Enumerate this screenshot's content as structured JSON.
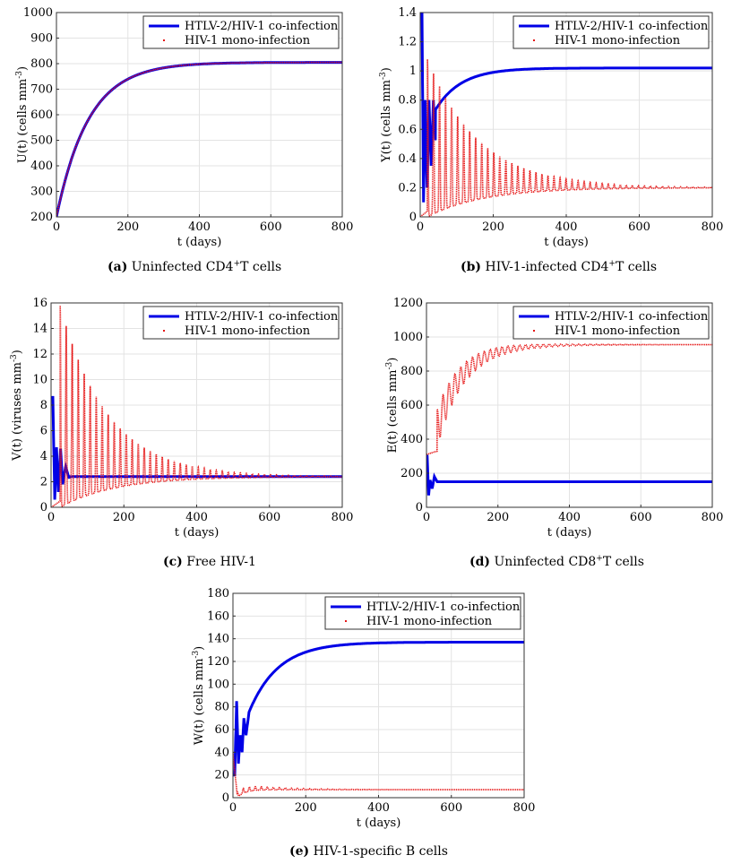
{
  "legend": {
    "coinfection": "HTLV-2/HIV-1 co-infection",
    "mono": "HIV-1 mono-infection"
  },
  "colors": {
    "coinfection": "#0000e6",
    "mono": "#e61717",
    "grid": "#e3e3e3",
    "axis": "#333333"
  },
  "chart_data": [
    {
      "id": "a",
      "type": "line",
      "caption_letter": "(a)",
      "caption_text": "Uninfected CD4",
      "caption_sup": "+",
      "caption_tail": "T cells",
      "ylabel": "U(t) (cells mm",
      "ylabel_sup": "-3",
      "ylabel_tail": ")",
      "xlabel": "t (days)",
      "xlim": [
        0,
        800
      ],
      "ylim": [
        200,
        1000
      ],
      "xticks": [
        0,
        200,
        400,
        600,
        800
      ],
      "yticks": [
        200,
        300,
        400,
        500,
        600,
        700,
        800,
        900,
        1000
      ],
      "legend_position": "top-right",
      "series": [
        {
          "name": "HTLV-2/HIV-1 co-infection",
          "model": "exp",
          "y0": 200,
          "y1": 805,
          "tau": 90
        },
        {
          "name": "HIV-1 mono-infection",
          "model": "exp",
          "y0": 200,
          "y1": 805,
          "tau": 90,
          "dotted": true
        }
      ]
    },
    {
      "id": "b",
      "type": "line",
      "caption_letter": "(b)",
      "caption_text": "HIV-1-infected CD4",
      "caption_sup": "+",
      "caption_tail": "T cells",
      "ylabel": "Y(t) (cells mm",
      "ylabel_sup": "-3",
      "ylabel_tail": ")",
      "xlabel": "t (days)",
      "xlim": [
        0,
        800
      ],
      "ylim": [
        0,
        1.4
      ],
      "xticks": [
        0,
        200,
        400,
        600,
        800
      ],
      "yticks": [
        0,
        0.2,
        0.4,
        0.6,
        0.8,
        1,
        1.2,
        1.4
      ],
      "legend_position": "top-right",
      "series": [
        {
          "name": "HTLV-2/HIV-1 co-infection",
          "model": "rise_osc",
          "y0": 0.5,
          "y1": 1.02,
          "tau": 70,
          "spikes": [
            [
              5,
              1.4
            ],
            [
              9,
              0.1
            ],
            [
              14,
              0.8
            ],
            [
              19,
              0.2
            ],
            [
              24,
              0.8
            ],
            [
              30,
              0.35
            ],
            [
              36,
              0.8
            ],
            [
              42,
              0.5
            ]
          ]
        },
        {
          "name": "HIV-1 mono-infection",
          "model": "decay_osc",
          "baseline": 0.2,
          "period": 16.5,
          "amp0": 1.08,
          "tau": 140,
          "start": 20,
          "dotted": true
        }
      ]
    },
    {
      "id": "c",
      "type": "line",
      "caption_letter": "(c)",
      "caption_text": "Free HIV-1",
      "caption_sup": "",
      "caption_tail": "",
      "ylabel": "V(t) (viruses mm",
      "ylabel_sup": "-3",
      "ylabel_tail": ")",
      "xlabel": "t (days)",
      "xlim": [
        0,
        800
      ],
      "ylim": [
        0,
        16
      ],
      "xticks": [
        0,
        200,
        400,
        600,
        800
      ],
      "yticks": [
        0,
        2,
        4,
        6,
        8,
        10,
        12,
        14,
        16
      ],
      "legend_position": "top-right",
      "series": [
        {
          "name": "HTLV-2/HIV-1 co-infection",
          "model": "flat_osc",
          "y1": 2.4,
          "spikes": [
            [
              5,
              8.6
            ],
            [
              10,
              0.6
            ],
            [
              15,
              4.7
            ],
            [
              20,
              1.2
            ],
            [
              26,
              4.6
            ],
            [
              32,
              1.8
            ],
            [
              40,
              3.2
            ],
            [
              50,
              2.2
            ]
          ]
        },
        {
          "name": "HIV-1 mono-infection",
          "model": "decay_osc",
          "baseline": 2.4,
          "period": 16.5,
          "amp0": 15.8,
          "tau": 130,
          "start": 25,
          "dotted": true
        }
      ]
    },
    {
      "id": "d",
      "type": "line",
      "caption_letter": "(d)",
      "caption_text": "Uninfected CD8",
      "caption_sup": "+",
      "caption_tail": "T cells",
      "ylabel": "E(t) (cells mm",
      "ylabel_sup": "-3",
      "ylabel_tail": ")",
      "xlabel": "t (days)",
      "xlim": [
        0,
        800
      ],
      "ylim": [
        0,
        1200
      ],
      "xticks": [
        0,
        200,
        400,
        600,
        800
      ],
      "yticks": [
        0,
        200,
        400,
        600,
        800,
        1000,
        1200
      ],
      "legend_position": "top-right",
      "series": [
        {
          "name": "HTLV-2/HIV-1 co-infection",
          "model": "flat_osc",
          "y1": 150,
          "spikes": [
            [
              2,
              300
            ],
            [
              6,
              70
            ],
            [
              10,
              160
            ],
            [
              16,
              110
            ],
            [
              22,
              180
            ],
            [
              30,
              150
            ]
          ]
        },
        {
          "name": "HIV-1 mono-infection",
          "model": "rise_decay_osc",
          "y0": 310,
          "y1": 955,
          "tau": 70,
          "start": 30,
          "period": 16.5,
          "amp0": 110,
          "atau": 120,
          "dotted": true
        }
      ]
    },
    {
      "id": "e",
      "type": "line",
      "caption_letter": "(e)",
      "caption_text": "HIV-1-specific B cells",
      "caption_sup": "",
      "caption_tail": "",
      "ylabel": "W(t) (cells mm",
      "ylabel_sup": "-3",
      "ylabel_tail": ")",
      "xlabel": "t (days)",
      "xlim": [
        0,
        800
      ],
      "ylim": [
        0,
        180
      ],
      "xticks": [
        0,
        200,
        400,
        600,
        800
      ],
      "yticks": [
        0,
        20,
        40,
        60,
        80,
        100,
        120,
        140,
        160,
        180
      ],
      "legend_position": "top-right",
      "series": [
        {
          "name": "HTLV-2/HIV-1 co-infection",
          "model": "rise_osc",
          "y0": 30,
          "y1": 137,
          "tau": 80,
          "spikes": [
            [
              5,
              20
            ],
            [
              10,
              85
            ],
            [
              15,
              30
            ],
            [
              20,
              55
            ],
            [
              25,
              40
            ],
            [
              30,
              70
            ],
            [
              36,
              55
            ],
            [
              44,
              75
            ]
          ]
        },
        {
          "name": "HIV-1 mono-infection",
          "model": "drop_osc",
          "y0": 40,
          "y1": 7,
          "period": 16.5,
          "amp0": 5,
          "tau": 120,
          "dotted": true
        }
      ]
    }
  ]
}
